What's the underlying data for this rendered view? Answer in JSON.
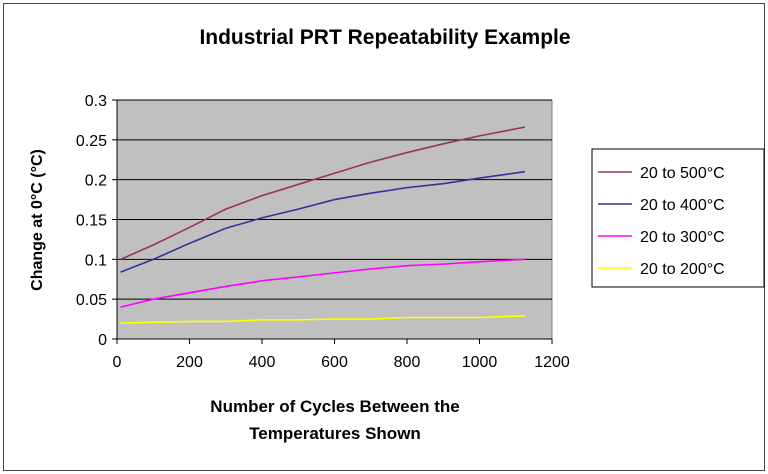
{
  "chart_data": {
    "type": "line",
    "title": "Industrial PRT Repeatability Example",
    "xlabel": "Number of Cycles Between the Temperatures Shown",
    "xlabel_lines": [
      "Number of Cycles Between the",
      "Temperatures Shown"
    ],
    "ylabel": "Change at 0°C (°C)",
    "xlim": [
      0,
      1200
    ],
    "ylim": [
      0,
      0.3
    ],
    "xticks": [
      "0",
      "200",
      "400",
      "600",
      "800",
      "1000",
      "1200"
    ],
    "yticks": [
      "0",
      "0.05",
      "0.1",
      "0.15",
      "0.2",
      "0.25",
      "0.3"
    ],
    "grid": true,
    "plot_background": "#c0c0c0",
    "legend_position": "right",
    "x": [
      10,
      100,
      200,
      300,
      400,
      500,
      600,
      700,
      800,
      900,
      1000,
      1125
    ],
    "series": [
      {
        "name": "20 to 500°C",
        "color": "#993366",
        "values": [
          0.1,
          0.118,
          0.14,
          0.163,
          0.18,
          0.194,
          0.208,
          0.222,
          0.234,
          0.245,
          0.255,
          0.266
        ]
      },
      {
        "name": "20 to 400°C",
        "color": "#333399",
        "values": [
          0.084,
          0.1,
          0.12,
          0.139,
          0.152,
          0.163,
          0.175,
          0.183,
          0.19,
          0.195,
          0.202,
          0.21
        ]
      },
      {
        "name": "20 to 300°C",
        "color": "#ff00ff",
        "values": [
          0.04,
          0.05,
          0.058,
          0.066,
          0.073,
          0.078,
          0.083,
          0.088,
          0.092,
          0.094,
          0.097,
          0.1
        ]
      },
      {
        "name": "20 to 200°C",
        "color": "#ffff00",
        "values": [
          0.02,
          0.021,
          0.022,
          0.022,
          0.024,
          0.024,
          0.025,
          0.025,
          0.027,
          0.027,
          0.027,
          0.029
        ]
      }
    ]
  }
}
